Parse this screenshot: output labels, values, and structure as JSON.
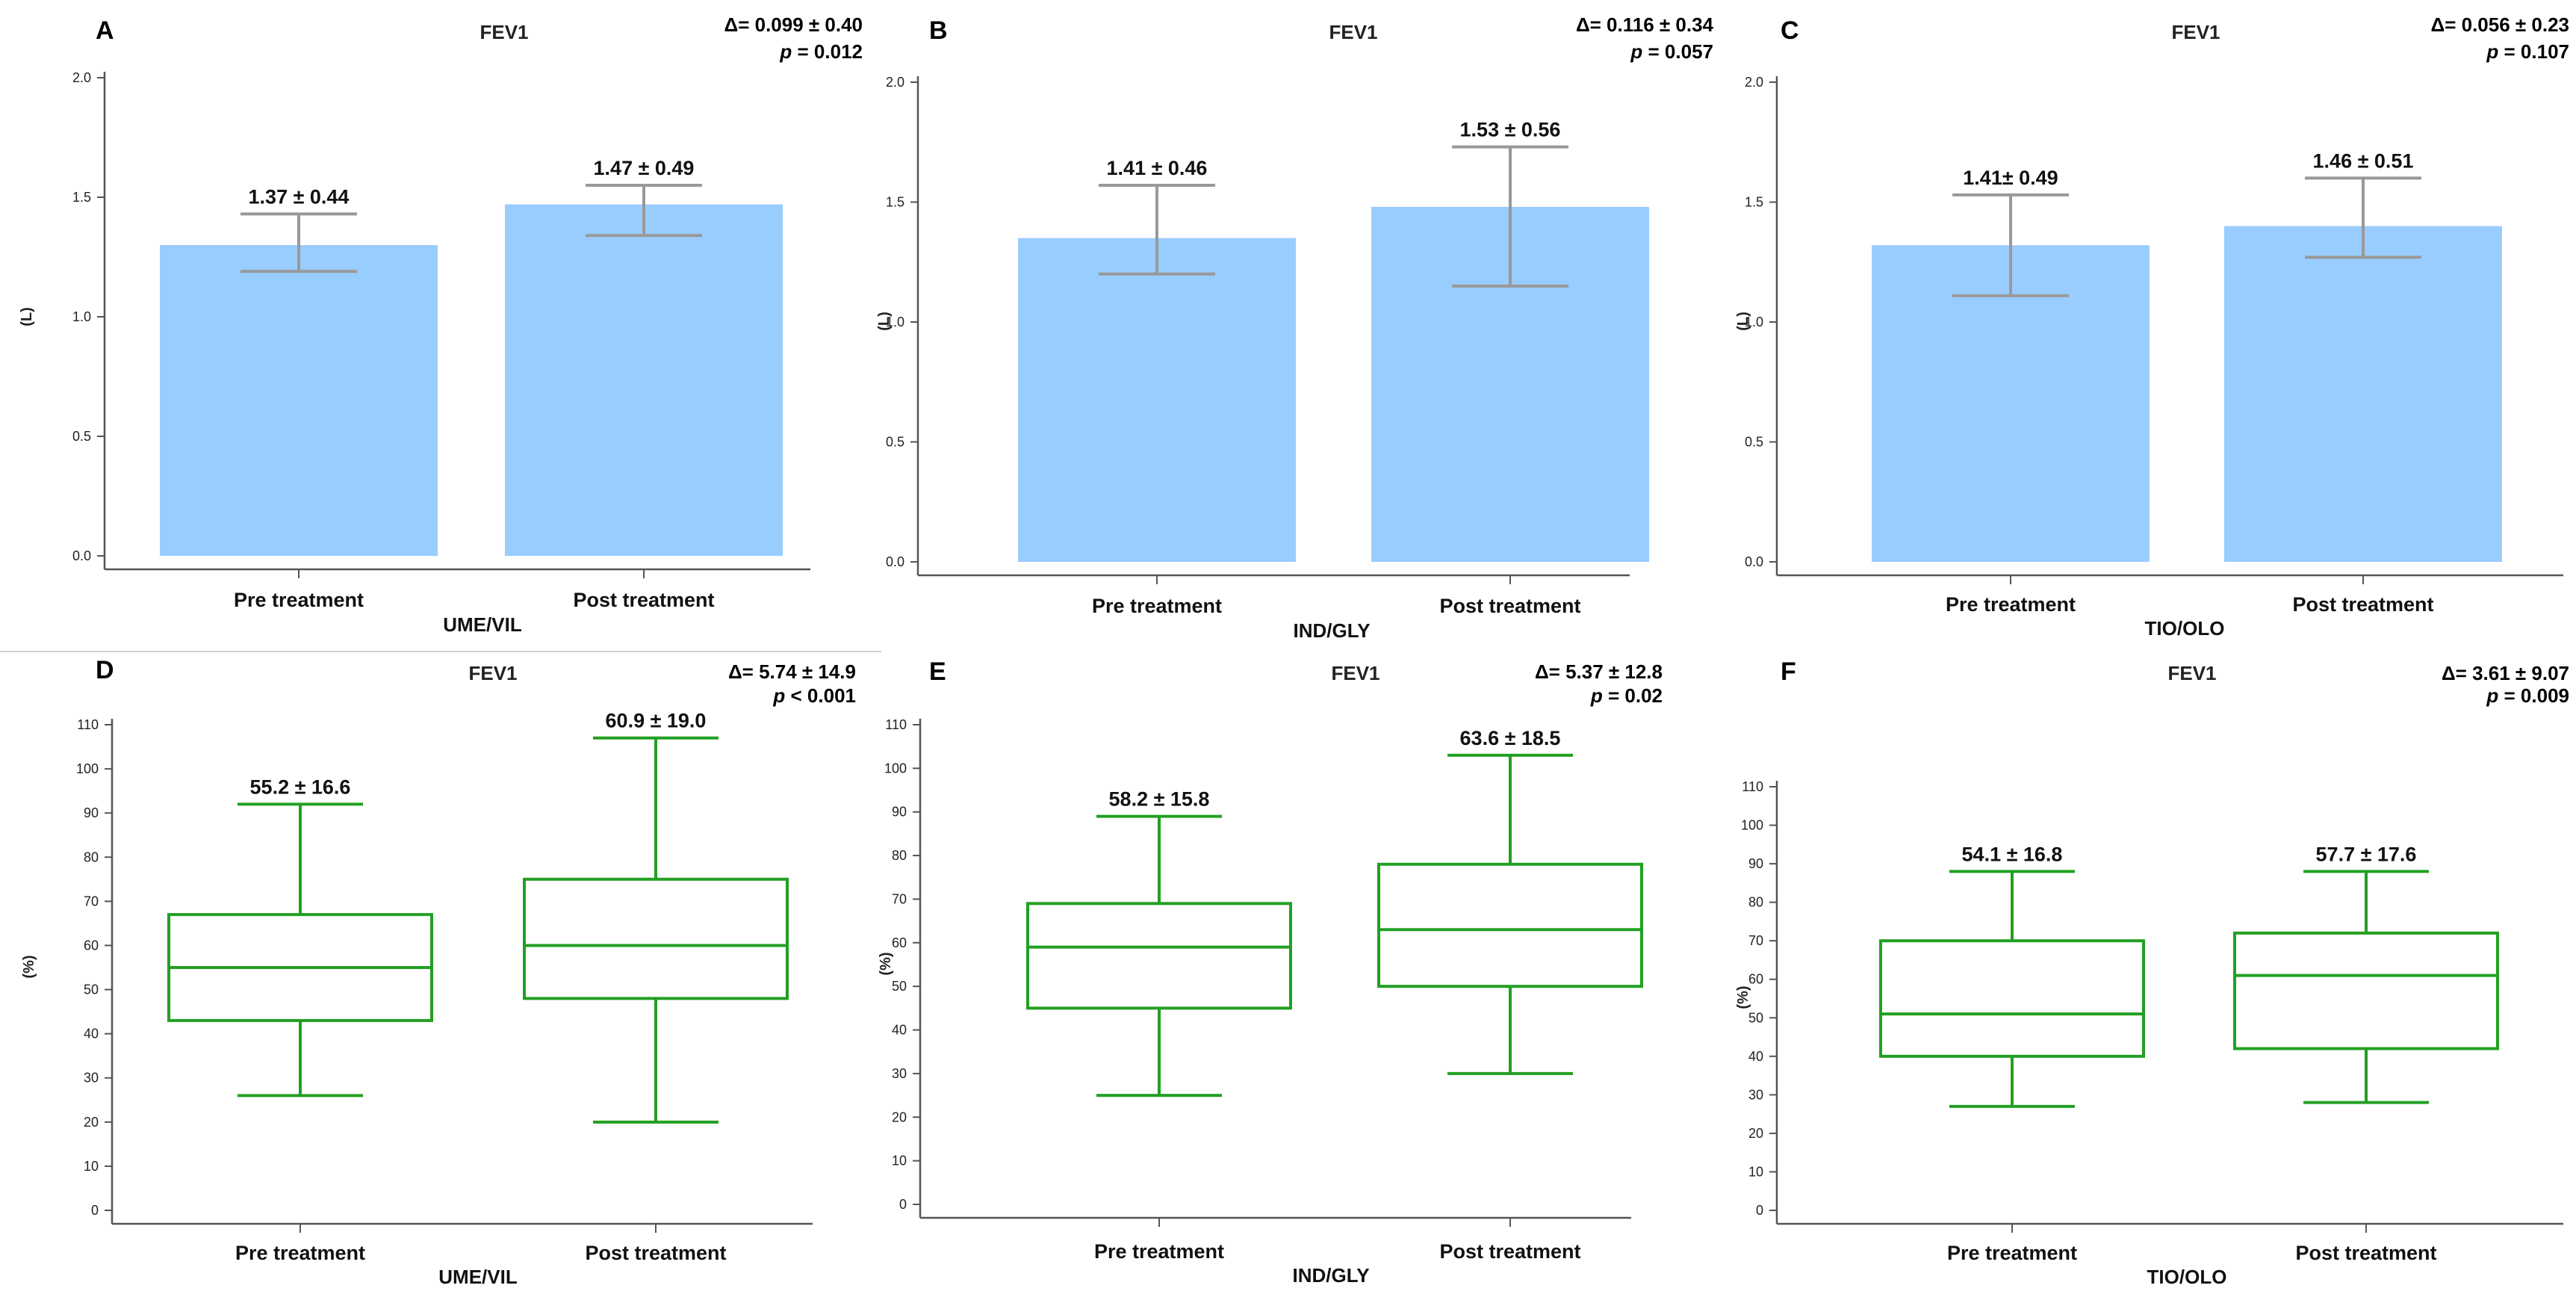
{
  "chart_data": [
    {
      "panel": "A",
      "type": "bar",
      "title": "FEV1",
      "ylabel": "(L)",
      "group_label": "UME/VIL",
      "delta": "Δ= 0.099 ± 0.40",
      "p_prefix": "p",
      "p_value": " = 0.012",
      "ylim": [
        0,
        2.0
      ],
      "yticks": [
        0.0,
        0.5,
        1.0,
        1.5,
        2.0
      ],
      "ytick_labels": [
        "0.0",
        "0.5",
        "1.0",
        "1.5",
        "2.0"
      ],
      "categories": [
        "Pre treatment",
        "Post treatment"
      ],
      "values": [
        1.3,
        1.47
      ],
      "error_low": [
        1.19,
        1.34
      ],
      "error_high": [
        1.43,
        1.55
      ],
      "data_labels": [
        "1.37 ± 0.44",
        "1.47 ± 0.49"
      ]
    },
    {
      "panel": "B",
      "type": "bar",
      "title": "FEV1",
      "ylabel": "(L)",
      "group_label": "IND/GLY",
      "delta": "Δ= 0.116 ± 0.34",
      "p_prefix": "p",
      "p_value": " = 0.057",
      "ylim": [
        0,
        2.0
      ],
      "yticks": [
        0.0,
        0.5,
        1.0,
        1.5,
        2.0
      ],
      "ytick_labels": [
        "0.0",
        "0.5",
        "1.0",
        "1.5",
        "2.0"
      ],
      "categories": [
        "Pre treatment",
        "Post treatment"
      ],
      "values": [
        1.35,
        1.48
      ],
      "error_low": [
        1.2,
        1.15
      ],
      "error_high": [
        1.57,
        1.73
      ],
      "data_labels": [
        "1.41 ± 0.46",
        "1.53 ± 0.56"
      ]
    },
    {
      "panel": "C",
      "type": "bar",
      "title": "FEV1",
      "ylabel": "(L)",
      "group_label": "TIO/OLO",
      "delta": "Δ= 0.056 ± 0.23",
      "p_prefix": "p",
      "p_value": " = 0.107",
      "ylim": [
        0,
        2.0
      ],
      "yticks": [
        0.0,
        0.5,
        1.0,
        1.5,
        2.0
      ],
      "ytick_labels": [
        "0.0",
        "0.5",
        "1.0",
        "1.5",
        "2.0"
      ],
      "categories": [
        "Pre treatment",
        "Post treatment"
      ],
      "values": [
        1.32,
        1.4
      ],
      "error_low": [
        1.11,
        1.27
      ],
      "error_high": [
        1.53,
        1.6
      ],
      "data_labels": [
        "1.41± 0.49",
        "1.46 ± 0.51"
      ]
    },
    {
      "panel": "D",
      "type": "box",
      "title": "FEV1",
      "ylabel": "(%)",
      "group_label": "UME/VIL",
      "delta": "Δ= 5.74 ± 14.9",
      "p_prefix": "p",
      "p_value": " < 0.001",
      "ylim": [
        0,
        110
      ],
      "yticks": [
        0,
        10,
        20,
        30,
        40,
        50,
        60,
        70,
        80,
        90,
        100,
        110
      ],
      "ytick_labels": [
        "0",
        "10",
        "20",
        "30",
        "40",
        "50",
        "60",
        "70",
        "80",
        "90",
        "100",
        "110"
      ],
      "categories": [
        "Pre treatment",
        "Post treatment"
      ],
      "boxes": [
        {
          "min": 26,
          "q1": 43,
          "median": 55,
          "q3": 67,
          "max": 92
        },
        {
          "min": 20,
          "q1": 48,
          "median": 60,
          "q3": 75,
          "max": 107
        }
      ],
      "data_labels": [
        "55.2 ± 16.6",
        "60.9 ± 19.0"
      ]
    },
    {
      "panel": "E",
      "type": "box",
      "title": "FEV1",
      "ylabel": "(%)",
      "group_label": "IND/GLY",
      "delta": "Δ= 5.37 ± 12.8",
      "p_prefix": "p",
      "p_value": " = 0.02",
      "ylim": [
        0,
        110
      ],
      "yticks": [
        0,
        10,
        20,
        30,
        40,
        50,
        60,
        70,
        80,
        90,
        100,
        110
      ],
      "ytick_labels": [
        "0",
        "10",
        "20",
        "30",
        "40",
        "50",
        "60",
        "70",
        "80",
        "90",
        "100",
        "110"
      ],
      "categories": [
        "Pre treatment",
        "Post treatment"
      ],
      "boxes": [
        {
          "min": 25,
          "q1": 45,
          "median": 59,
          "q3": 69,
          "max": 89
        },
        {
          "min": 30,
          "q1": 50,
          "median": 63,
          "q3": 78,
          "max": 103
        }
      ],
      "data_labels": [
        "58.2 ± 15.8",
        "63.6 ± 18.5"
      ]
    },
    {
      "panel": "F",
      "type": "box",
      "title": "FEV1",
      "ylabel": "(%)",
      "group_label": "TIO/OLO",
      "delta": "Δ= 3.61 ± 9.07",
      "p_prefix": "p",
      "p_value": " = 0.009",
      "ylim": [
        0,
        110
      ],
      "yticks": [
        0,
        10,
        20,
        30,
        40,
        50,
        60,
        70,
        80,
        90,
        100,
        110
      ],
      "ytick_labels": [
        "0",
        "10",
        "20",
        "30",
        "40",
        "50",
        "60",
        "70",
        "80",
        "90",
        "100",
        "110"
      ],
      "categories": [
        "Pre treatment",
        "Post treatment"
      ],
      "boxes": [
        {
          "min": 27,
          "q1": 40,
          "median": 51,
          "q3": 70,
          "max": 88
        },
        {
          "min": 28,
          "q1": 42,
          "median": 61,
          "q3": 72,
          "max": 88
        }
      ],
      "data_labels": [
        "54.1 ± 16.8",
        "57.7 ± 17.6"
      ]
    }
  ],
  "colors": {
    "bar_fill": "#99ccff",
    "error_bar": "#999999",
    "box_stroke": "#22a022",
    "axis": "#555555",
    "separator": "#d0d0d0"
  }
}
